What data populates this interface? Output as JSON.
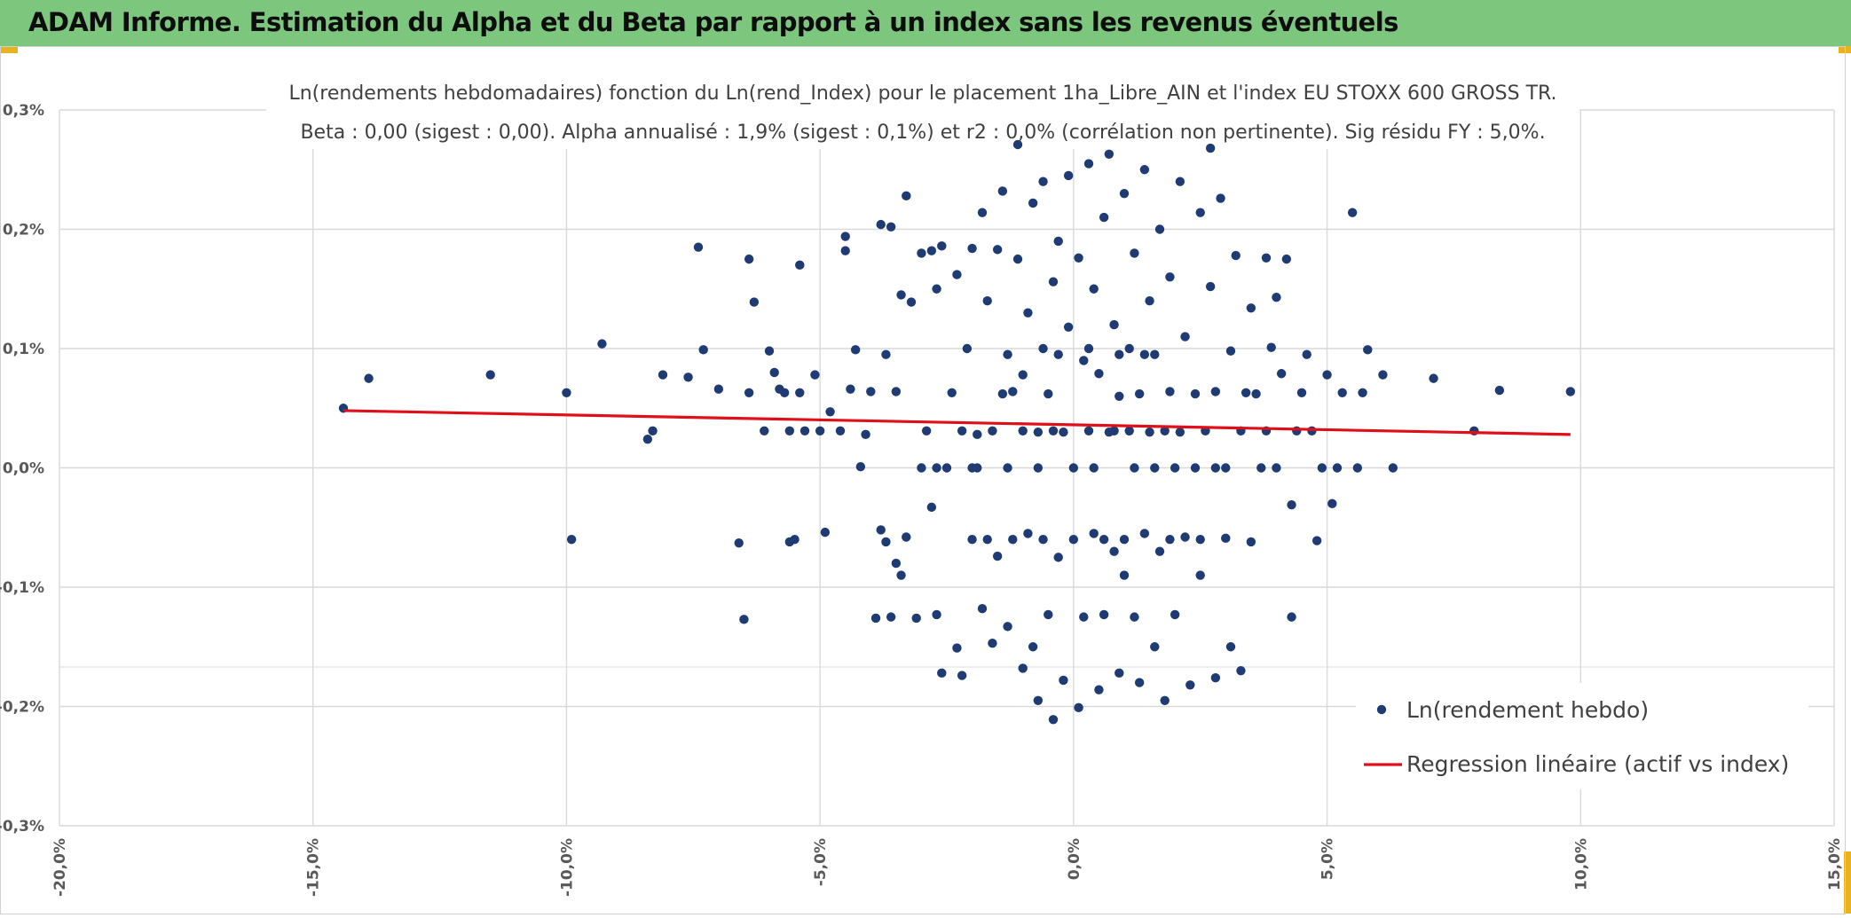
{
  "header": {
    "title": "ADAM Informe. Estimation du Alpha et du Beta par rapport à un index sans les revenus éventuels"
  },
  "colors": {
    "header_bg": "#7dc67d",
    "accent": "#e7b321",
    "points": "#1f3b73",
    "regression": "#e0101a"
  },
  "chart_data": {
    "type": "scatter",
    "title_lines": [
      "Ln(rendements hebdomadaires) fonction du Ln(rend_Index) pour le placement 1ha_Libre_AIN et l'index EU STOXX 600 GROSS TR.",
      "Beta : 0,00 (sigest : 0,00). Alpha annualisé : 1,9% (sigest : 0,1%) et r2 : 0,0% (corrélation non pertinente). Sig résidu FY : 5,0%."
    ],
    "xlim": [
      -20,
      15
    ],
    "ylim": [
      -0.3,
      0.3
    ],
    "x_ticks": [
      {
        "value": -20,
        "label": "-20,0%"
      },
      {
        "value": -15,
        "label": "-15,0%"
      },
      {
        "value": -10,
        "label": "-10,0%"
      },
      {
        "value": -5,
        "label": "-5,0%"
      },
      {
        "value": 0,
        "label": "0,0%"
      },
      {
        "value": 5,
        "label": "5,0%"
      },
      {
        "value": 10,
        "label": "10,0%"
      },
      {
        "value": 15,
        "label": "15,0%"
      }
    ],
    "y_ticks": [
      {
        "value": 0.3,
        "label": "0,3%"
      },
      {
        "value": 0.2,
        "label": "0,2%"
      },
      {
        "value": 0.1,
        "label": "0,1%"
      },
      {
        "value": 0.0,
        "label": "0,0%"
      },
      {
        "value": -0.1,
        "label": "-0,1%"
      },
      {
        "value": -0.2,
        "label": "-0,2%"
      },
      {
        "value": -0.3,
        "label": "-0,3%"
      }
    ],
    "grid": true,
    "legend_position": "bottom-right",
    "series": [
      {
        "name": "Ln(rendement hebdo)",
        "kind": "points",
        "points": [
          [
            -14.4,
            0.05
          ],
          [
            -13.9,
            0.075
          ],
          [
            -11.5,
            0.078
          ],
          [
            -10.0,
            0.063
          ],
          [
            -9.9,
            -0.06
          ],
          [
            -9.3,
            0.104
          ],
          [
            -8.4,
            0.024
          ],
          [
            -8.3,
            0.031
          ],
          [
            -8.1,
            0.078
          ],
          [
            -7.6,
            0.076
          ],
          [
            -7.4,
            0.185
          ],
          [
            -7.3,
            0.099
          ],
          [
            -7.0,
            0.066
          ],
          [
            -6.6,
            -0.063
          ],
          [
            -6.5,
            -0.127
          ],
          [
            -6.4,
            0.063
          ],
          [
            -6.4,
            0.175
          ],
          [
            -6.3,
            0.139
          ],
          [
            -6.1,
            0.031
          ],
          [
            -6.0,
            0.098
          ],
          [
            -5.9,
            0.08
          ],
          [
            -5.8,
            0.066
          ],
          [
            -5.7,
            0.063
          ],
          [
            -5.6,
            0.031
          ],
          [
            -5.6,
            -0.062
          ],
          [
            -5.5,
            -0.06
          ],
          [
            -5.4,
            0.17
          ],
          [
            -5.4,
            0.063
          ],
          [
            -5.3,
            0.031
          ],
          [
            -5.1,
            0.078
          ],
          [
            -5.0,
            0.031
          ],
          [
            -4.9,
            -0.054
          ],
          [
            -4.8,
            0.047
          ],
          [
            -4.6,
            0.031
          ],
          [
            -4.5,
            0.194
          ],
          [
            -4.5,
            0.182
          ],
          [
            -4.4,
            0.066
          ],
          [
            -4.3,
            0.099
          ],
          [
            -4.2,
            0.001
          ],
          [
            -4.1,
            0.028
          ],
          [
            -4.0,
            0.064
          ],
          [
            -3.9,
            -0.126
          ],
          [
            -3.8,
            0.204
          ],
          [
            -3.8,
            -0.052
          ],
          [
            -3.7,
            -0.062
          ],
          [
            -3.7,
            0.095
          ],
          [
            -3.6,
            0.202
          ],
          [
            -3.6,
            -0.125
          ],
          [
            -3.5,
            0.064
          ],
          [
            -3.5,
            -0.08
          ],
          [
            -3.4,
            0.145
          ],
          [
            -3.4,
            -0.09
          ],
          [
            -3.3,
            0.228
          ],
          [
            -3.3,
            -0.058
          ],
          [
            -3.2,
            0.139
          ],
          [
            -3.1,
            -0.126
          ],
          [
            -3.0,
            0.18
          ],
          [
            -2.9,
            0.031
          ],
          [
            -2.8,
            0.182
          ],
          [
            -2.8,
            -0.033
          ],
          [
            -2.7,
            0.15
          ],
          [
            -2.7,
            -0.123
          ],
          [
            -2.6,
            0.186
          ],
          [
            -2.6,
            -0.172
          ],
          [
            -2.5,
            0.0
          ],
          [
            -2.4,
            0.063
          ],
          [
            -2.3,
            -0.151
          ],
          [
            -2.3,
            0.162
          ],
          [
            -2.2,
            -0.174
          ],
          [
            -2.1,
            0.1
          ],
          [
            -2.0,
            0.184
          ],
          [
            -2.0,
            -0.06
          ],
          [
            -1.9,
            0.028
          ],
          [
            -1.8,
            0.214
          ],
          [
            -1.8,
            -0.118
          ],
          [
            -1.7,
            0.14
          ],
          [
            -1.6,
            -0.147
          ],
          [
            -1.5,
            0.183
          ],
          [
            -1.5,
            -0.074
          ],
          [
            -1.4,
            0.232
          ],
          [
            -1.4,
            0.062
          ],
          [
            -1.3,
            -0.133
          ],
          [
            -1.3,
            0.095
          ],
          [
            -1.2,
            -0.06
          ],
          [
            -1.1,
            0.271
          ],
          [
            -1.1,
            0.175
          ],
          [
            -1.0,
            -0.168
          ],
          [
            -1.0,
            0.078
          ],
          [
            -0.9,
            0.13
          ],
          [
            -0.9,
            -0.055
          ],
          [
            -0.8,
            0.222
          ],
          [
            -0.8,
            -0.15
          ],
          [
            -0.7,
            0.03
          ],
          [
            -0.7,
            -0.195
          ],
          [
            -0.6,
            0.24
          ],
          [
            -0.6,
            0.1
          ],
          [
            -0.5,
            -0.123
          ],
          [
            -0.5,
            0.062
          ],
          [
            -0.4,
            0.156
          ],
          [
            -0.4,
            -0.211
          ],
          [
            -0.3,
            0.19
          ],
          [
            -0.3,
            -0.075
          ],
          [
            -0.2,
            0.03
          ],
          [
            -0.2,
            -0.178
          ],
          [
            -0.1,
            0.245
          ],
          [
            -0.1,
            0.118
          ],
          [
            0.0,
            0.0
          ],
          [
            0.0,
            -0.06
          ],
          [
            0.1,
            0.176
          ],
          [
            0.1,
            -0.201
          ],
          [
            0.2,
            0.09
          ],
          [
            0.2,
            -0.125
          ],
          [
            0.3,
            0.255
          ],
          [
            0.3,
            0.031
          ],
          [
            0.4,
            -0.055
          ],
          [
            0.4,
            0.15
          ],
          [
            0.5,
            -0.186
          ],
          [
            0.5,
            0.079
          ],
          [
            0.6,
            0.21
          ],
          [
            0.6,
            -0.123
          ],
          [
            0.7,
            0.03
          ],
          [
            0.7,
            0.263
          ],
          [
            0.8,
            -0.07
          ],
          [
            0.8,
            0.12
          ],
          [
            0.9,
            -0.172
          ],
          [
            0.9,
            0.06
          ],
          [
            1.0,
            0.23
          ],
          [
            1.0,
            -0.09
          ],
          [
            1.1,
            0.1
          ],
          [
            1.1,
            0.031
          ],
          [
            1.2,
            0.18
          ],
          [
            1.2,
            -0.125
          ],
          [
            1.3,
            0.062
          ],
          [
            1.3,
            -0.18
          ],
          [
            1.4,
            0.25
          ],
          [
            1.4,
            -0.055
          ],
          [
            1.5,
            0.14
          ],
          [
            1.5,
            0.03
          ],
          [
            1.6,
            -0.15
          ],
          [
            1.6,
            0.095
          ],
          [
            1.7,
            0.2
          ],
          [
            1.7,
            -0.07
          ],
          [
            1.8,
            0.031
          ],
          [
            1.8,
            -0.195
          ],
          [
            1.9,
            0.16
          ],
          [
            1.9,
            0.064
          ],
          [
            2.0,
            -0.123
          ],
          [
            2.1,
            0.24
          ],
          [
            2.1,
            0.03
          ],
          [
            2.2,
            -0.058
          ],
          [
            2.2,
            0.11
          ],
          [
            2.3,
            -0.182
          ],
          [
            2.4,
            0.062
          ],
          [
            2.5,
            0.214
          ],
          [
            2.5,
            -0.09
          ],
          [
            2.6,
            0.031
          ],
          [
            2.7,
            0.268
          ],
          [
            2.7,
            0.152
          ],
          [
            2.8,
            -0.176
          ],
          [
            2.8,
            0.064
          ],
          [
            2.9,
            0.226
          ],
          [
            3.0,
            -0.059
          ],
          [
            3.0,
            0.0
          ],
          [
            3.1,
            -0.15
          ],
          [
            3.1,
            0.098
          ],
          [
            3.2,
            0.178
          ],
          [
            3.3,
            -0.17
          ],
          [
            3.3,
            0.031
          ],
          [
            3.4,
            0.063
          ],
          [
            3.5,
            0.134
          ],
          [
            3.5,
            -0.062
          ],
          [
            3.6,
            0.062
          ],
          [
            3.7,
            0.0
          ],
          [
            3.8,
            0.176
          ],
          [
            3.8,
            0.031
          ],
          [
            3.9,
            0.101
          ],
          [
            4.0,
            0.143
          ],
          [
            4.0,
            0.0
          ],
          [
            4.1,
            0.079
          ],
          [
            4.2,
            0.175
          ],
          [
            4.3,
            -0.125
          ],
          [
            4.3,
            -0.031
          ],
          [
            4.4,
            0.031
          ],
          [
            4.5,
            0.063
          ],
          [
            4.6,
            0.095
          ],
          [
            4.7,
            0.031
          ],
          [
            4.8,
            -0.061
          ],
          [
            4.9,
            0.0
          ],
          [
            5.0,
            0.078
          ],
          [
            5.1,
            -0.03
          ],
          [
            5.2,
            0.0
          ],
          [
            5.3,
            0.063
          ],
          [
            5.5,
            0.214
          ],
          [
            5.6,
            0.0
          ],
          [
            5.7,
            0.063
          ],
          [
            5.8,
            0.099
          ],
          [
            6.1,
            0.078
          ],
          [
            6.3,
            0.0
          ],
          [
            7.1,
            0.075
          ],
          [
            7.9,
            0.031
          ],
          [
            8.4,
            0.065
          ],
          [
            9.8,
            0.064
          ],
          [
            -2.2,
            0.031
          ],
          [
            -1.9,
            0.0
          ],
          [
            -1.6,
            0.031
          ],
          [
            -1.3,
            0.0
          ],
          [
            -1.0,
            0.031
          ],
          [
            -0.7,
            0.0
          ],
          [
            -0.4,
            0.031
          ],
          [
            0.4,
            0.0
          ],
          [
            0.8,
            0.031
          ],
          [
            1.2,
            0.0
          ],
          [
            1.6,
            0.0
          ],
          [
            2.0,
            0.0
          ],
          [
            2.4,
            0.0
          ],
          [
            2.8,
            0.0
          ],
          [
            -3.0,
            0.0
          ],
          [
            -2.7,
            0.0
          ],
          [
            -2.0,
            0.0
          ],
          [
            -1.2,
            0.064
          ],
          [
            -0.3,
            0.095
          ],
          [
            0.3,
            0.1
          ],
          [
            0.9,
            0.095
          ],
          [
            1.4,
            0.095
          ],
          [
            -0.6,
            -0.06
          ],
          [
            0.6,
            -0.06
          ],
          [
            1.0,
            -0.06
          ],
          [
            1.9,
            -0.06
          ],
          [
            -1.7,
            -0.06
          ],
          [
            2.5,
            -0.06
          ]
        ]
      },
      {
        "name": "Regression linéaire (actif vs index)",
        "kind": "line",
        "points": [
          [
            -14.4,
            0.048
          ],
          [
            9.8,
            0.028
          ]
        ]
      }
    ]
  }
}
